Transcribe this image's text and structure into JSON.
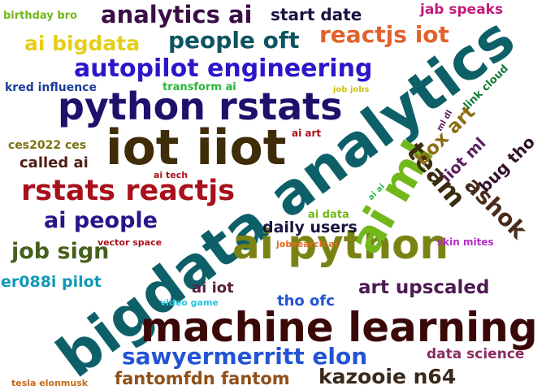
{
  "cloud": {
    "words": [
      {
        "text": "bigdata analytics",
        "color": "#0e6068",
        "angle": -37
      },
      {
        "text": "machine learning",
        "color": "#3b0808"
      },
      {
        "text": "iot iiot",
        "color": "#3f2d0a"
      },
      {
        "text": "ai python",
        "color": "#7a8312"
      },
      {
        "text": "python rstats",
        "color": "#20106b"
      },
      {
        "text": "autopilot engineering",
        "color": "#2b17c9"
      },
      {
        "text": "rstats reactjs",
        "color": "#a8101b"
      },
      {
        "text": "sawyermerritt elon",
        "color": "#2354d4"
      },
      {
        "text": "ai ml",
        "color": "#72b81a",
        "angle": -60
      },
      {
        "text": "analytics ai",
        "color": "#3a0e46"
      },
      {
        "text": "people oft",
        "color": "#0d5463"
      },
      {
        "text": "reactjs iot",
        "color": "#e2622c"
      },
      {
        "text": "ai bigdata",
        "color": "#e5cf16"
      },
      {
        "text": "ai people",
        "color": "#27148a"
      },
      {
        "text": "job sign",
        "color": "#46601c"
      },
      {
        "text": "kazooie n64",
        "color": "#3b2a1a"
      },
      {
        "text": "fantomfdn fantom",
        "color": "#925019"
      },
      {
        "text": "art upscaled",
        "color": "#4d1a53"
      },
      {
        "text": "team",
        "color": "#3a2c10",
        "angle": 50
      },
      {
        "text": "ashok",
        "color": "#4a2b1c",
        "angle": 45
      },
      {
        "text": "box art",
        "color": "#8b6d12",
        "angle": -45
      },
      {
        "text": "daily users",
        "color": "#1b1340"
      },
      {
        "text": "start date",
        "color": "#1a1340"
      },
      {
        "text": "jab speaks",
        "color": "#c21b7b"
      },
      {
        "text": "called ai",
        "color": "#4f2012"
      },
      {
        "text": "er088i pilot",
        "color": "#119ab8"
      },
      {
        "text": "tho ofc",
        "color": "#2354d4"
      },
      {
        "text": "data science",
        "color": "#8a2b5f"
      },
      {
        "text": "ai iot",
        "color": "#5a1d3b"
      },
      {
        "text": "iiot ml",
        "color": "#5a1f5a",
        "angle": -45
      },
      {
        "text": "bug tho",
        "color": "#31102b",
        "angle": -45
      },
      {
        "text": "ces2022 ces",
        "color": "#7a7010"
      },
      {
        "text": "kred influence",
        "color": "#1a3c9b"
      },
      {
        "text": "birthday bro",
        "color": "#72b81a"
      },
      {
        "text": "transform ai",
        "color": "#29b63a"
      },
      {
        "text": "link cloud",
        "color": "#157a3a",
        "angle": -45
      },
      {
        "text": "ai data",
        "color": "#72b81a"
      },
      {
        "text": "ai art",
        "color": "#a8101b"
      },
      {
        "text": "ai tech",
        "color": "#a8101b"
      },
      {
        "text": "vector space",
        "color": "#a8101b"
      },
      {
        "text": "jobsearch ai",
        "color": "#e26b1e"
      },
      {
        "text": "skin mites",
        "color": "#b62cc7"
      },
      {
        "text": "video game",
        "color": "#25c4de"
      },
      {
        "text": "tesla elonmusk",
        "color": "#c46a15"
      },
      {
        "text": "job jobs",
        "color": "#d0c516"
      },
      {
        "text": "ml dl",
        "color": "#5a1f5a",
        "angle": -60
      },
      {
        "text": "ai ai",
        "color": "#2eb84a",
        "angle": -45
      }
    ]
  }
}
